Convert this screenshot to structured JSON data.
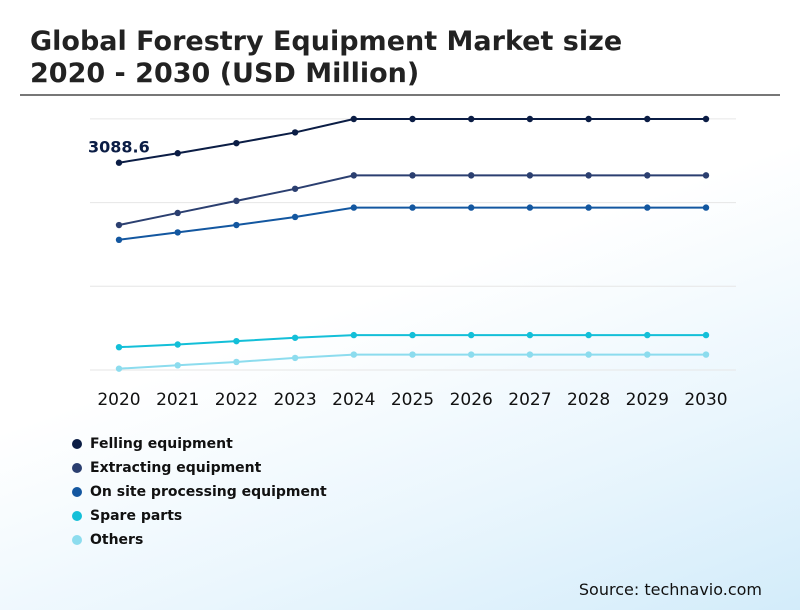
{
  "header": {
    "title_line1": "Global Forestry Equipment Market size",
    "title_line2": "2020 - 2030 (USD Million)"
  },
  "footer": {
    "source": "Source: technavio.com"
  },
  "chart_data": {
    "type": "line",
    "title": "Global Forestry Equipment Market size 2020 - 2030 (USD Million)",
    "x": [
      "2020",
      "2021",
      "2022",
      "2023",
      "2024",
      "2025",
      "2026",
      "2027",
      "2028",
      "2029",
      "2030"
    ],
    "annotation": {
      "text": "3088.6",
      "series": "Felling equipment",
      "x": "2020"
    },
    "grid": true,
    "legend_position": "bottom-left",
    "ylim": [
      0,
      4500
    ],
    "series": [
      {
        "name": "Felling equipment",
        "color": "#0b1d45",
        "values": [
          3088.6,
          3230,
          3380,
          3540,
          3740,
          3740,
          3740,
          3740,
          3740,
          3740,
          3740
        ]
      },
      {
        "name": "Extracting equipment",
        "color": "#2b3f70",
        "values": [
          2160,
          2340,
          2520,
          2700,
          2900,
          2900,
          2900,
          2900,
          2900,
          2900,
          2900
        ]
      },
      {
        "name": "On site processing equipment",
        "color": "#1357a0",
        "values": [
          1940,
          2050,
          2160,
          2280,
          2420,
          2420,
          2420,
          2420,
          2420,
          2420,
          2420
        ]
      },
      {
        "name": "Spare parts",
        "color": "#13bfd8",
        "values": [
          340,
          380,
          430,
          480,
          520,
          520,
          520,
          520,
          520,
          520,
          520
        ]
      },
      {
        "name": "Others",
        "color": "#8cdcee",
        "values": [
          20,
          70,
          120,
          180,
          230,
          230,
          230,
          230,
          230,
          230,
          230
        ]
      }
    ]
  }
}
